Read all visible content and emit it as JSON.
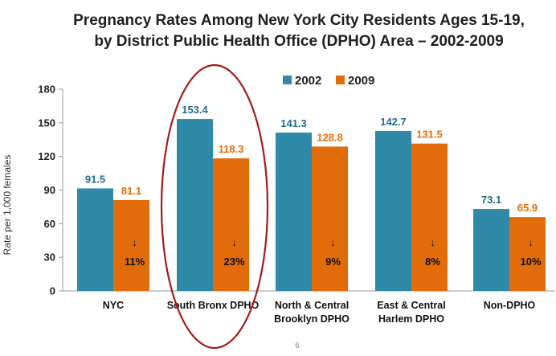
{
  "chart_data": {
    "type": "bar",
    "title_lines": [
      "Pregnancy Rates Among New York City Residents Ages 15-19,",
      "by District Public Health Office (DPHO) Area – 2002-2009"
    ],
    "xlabel": "",
    "ylabel": "Rate per 1,000 females",
    "ylim": [
      0,
      180
    ],
    "yticks": [
      0,
      30,
      60,
      90,
      120,
      150,
      180
    ],
    "categories": [
      [
        "NYC"
      ],
      [
        "South Bronx DPHO"
      ],
      [
        "North & Central",
        "Brooklyn DPHO"
      ],
      [
        "East & Central",
        "Harlem DPHO"
      ],
      [
        "Non-DPHO"
      ]
    ],
    "series": [
      {
        "name": "2002",
        "color": "#2e8aa6",
        "label_color": "#1f6f86",
        "values": [
          91.5,
          153.4,
          141.3,
          142.7,
          73.1
        ],
        "labels": [
          "91.5",
          "153.4",
          "141.3",
          "142.7",
          "73.1"
        ]
      },
      {
        "name": "2009",
        "color": "#e36c0a",
        "label_color": "#e36c0a",
        "values": [
          81.1,
          118.3,
          128.8,
          131.5,
          65.9
        ],
        "labels": [
          "81.1",
          "118.3",
          "128.8",
          "131.5",
          "65.9"
        ]
      }
    ],
    "decline_labels": [
      "11%",
      "23%",
      "9%",
      "8%",
      "10%"
    ],
    "decline_arrow": "↓",
    "grid": false,
    "legend_position": "top-right",
    "highlight_category_index": 1,
    "highlight_color": "#a31c1c"
  },
  "page_number": "6"
}
